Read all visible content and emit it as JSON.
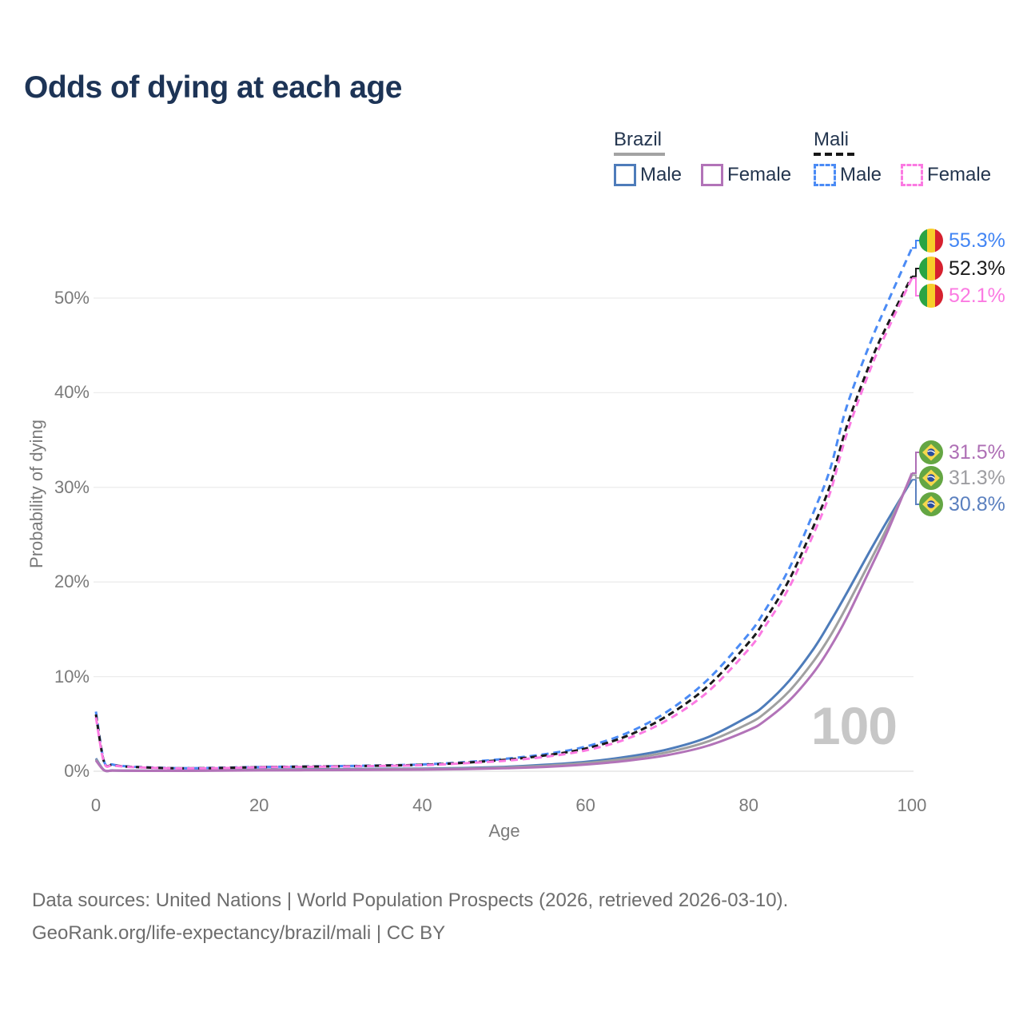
{
  "title": "Odds of dying at each age",
  "legend": {
    "groups": [
      {
        "label": "Brazil",
        "line_style": "solid",
        "header_line_color": "#a3a3a3",
        "items": [
          {
            "label": "Male",
            "color": "#4e7cba"
          },
          {
            "label": "Female",
            "color": "#b273b8"
          }
        ]
      },
      {
        "label": "Mali",
        "line_style": "dashed",
        "header_line_color": "#161616",
        "items": [
          {
            "label": "Male",
            "color": "#4b8bf5"
          },
          {
            "label": "Female",
            "color": "#fb7ae2"
          }
        ]
      }
    ]
  },
  "watermark": "100",
  "footer": {
    "line1": "Data sources: United Nations | World Population Prospects (2026, retrieved 2026-03-10).",
    "line2": "GeoRank.org/life-expectancy/brazil/mali | CC BY"
  },
  "chart_data": {
    "type": "line",
    "title": "Odds of dying at each age",
    "xlabel": "Age",
    "ylabel": "Probability of dying",
    "xlim": [
      0,
      100
    ],
    "ylim_pct": [
      0,
      57
    ],
    "grid": "horizontal",
    "legend_position": "top-right",
    "x_ticks": [
      0,
      20,
      40,
      60,
      80,
      100
    ],
    "y_tick_values": [
      0,
      10,
      20,
      30,
      40,
      50
    ],
    "y_tick_labels": [
      "0%",
      "10%",
      "20%",
      "30%",
      "40%",
      "50%"
    ],
    "ages": [
      0,
      1,
      2,
      3,
      5,
      10,
      15,
      20,
      25,
      30,
      35,
      40,
      45,
      50,
      55,
      60,
      65,
      70,
      75,
      80,
      82,
      85,
      88,
      90,
      92,
      95,
      97,
      100
    ],
    "series": [
      {
        "id": "brazil_male",
        "name": "Brazil Male",
        "color": "#4e7cba",
        "dash": null,
        "values": [
          1.35,
          0.12,
          0.09,
          0.07,
          0.06,
          0.05,
          0.11,
          0.17,
          0.2,
          0.22,
          0.25,
          0.28,
          0.34,
          0.46,
          0.68,
          1.0,
          1.52,
          2.3,
          3.6,
          5.8,
          7.0,
          9.6,
          13.0,
          15.8,
          18.8,
          23.5,
          26.5,
          30.8
        ]
      },
      {
        "id": "brazil_combined",
        "name": "Brazil Both sexes",
        "color": "#a0a0a0",
        "dash": null,
        "values": [
          1.25,
          0.11,
          0.08,
          0.06,
          0.05,
          0.045,
          0.09,
          0.13,
          0.16,
          0.18,
          0.2,
          0.23,
          0.28,
          0.39,
          0.57,
          0.86,
          1.32,
          2.0,
          3.15,
          5.05,
          6.15,
          8.5,
          11.7,
          14.3,
          17.4,
          22.4,
          25.8,
          31.3
        ]
      },
      {
        "id": "brazil_female",
        "name": "Brazil Female",
        "color": "#b273b8",
        "dash": null,
        "values": [
          1.15,
          0.1,
          0.07,
          0.055,
          0.045,
          0.04,
          0.06,
          0.09,
          0.11,
          0.13,
          0.15,
          0.17,
          0.22,
          0.31,
          0.46,
          0.71,
          1.1,
          1.7,
          2.7,
          4.35,
          5.35,
          7.5,
          10.5,
          13.1,
          16.2,
          21.6,
          25.3,
          31.5
        ]
      },
      {
        "id": "mali_male",
        "name": "Mali Male",
        "color": "#4b8bf5",
        "dash": "9 6",
        "values": [
          6.3,
          1.05,
          0.72,
          0.58,
          0.46,
          0.33,
          0.37,
          0.45,
          0.5,
          0.55,
          0.62,
          0.72,
          0.95,
          1.3,
          1.8,
          2.6,
          4.0,
          6.3,
          9.7,
          14.5,
          17.0,
          21.5,
          27.5,
          32.0,
          38.5,
          45.5,
          49.5,
          55.3
        ]
      },
      {
        "id": "mali_combined",
        "name": "Mali Both sexes",
        "color": "#1a1a1a",
        "dash": "8 5",
        "values": [
          6.0,
          0.98,
          0.68,
          0.55,
          0.44,
          0.31,
          0.35,
          0.43,
          0.48,
          0.52,
          0.59,
          0.68,
          0.89,
          1.2,
          1.66,
          2.4,
          3.7,
          5.85,
          9.0,
          13.6,
          16.0,
          20.3,
          26.0,
          30.3,
          36.4,
          43.4,
          47.2,
          52.3
        ]
      },
      {
        "id": "mali_female",
        "name": "Mali Female",
        "color": "#fb7ae2",
        "dash": "9 6",
        "values": [
          5.7,
          0.92,
          0.64,
          0.52,
          0.42,
          0.3,
          0.33,
          0.41,
          0.46,
          0.5,
          0.56,
          0.64,
          0.84,
          1.1,
          1.52,
          2.2,
          3.4,
          5.4,
          8.4,
          12.9,
          15.3,
          19.5,
          25.2,
          29.5,
          35.6,
          42.7,
          46.6,
          52.1
        ]
      }
    ],
    "end_labels": [
      {
        "series": "mali_male",
        "flag": "mali",
        "pct": 55.3,
        "value": "55.3%",
        "color": "#4285f4"
      },
      {
        "series": "mali_combined",
        "flag": "mali",
        "pct": 52.3,
        "value": "52.3%",
        "color": "#1c1c1c"
      },
      {
        "series": "mali_female",
        "flag": "mali",
        "pct": 52.1,
        "value": "52.1%",
        "color": "#fb7ae2"
      },
      {
        "series": "brazil_female",
        "flag": "brazil",
        "pct": 31.5,
        "value": "31.5%",
        "color": "#ae6fb5"
      },
      {
        "series": "brazil_combined",
        "flag": "brazil",
        "pct": 31.3,
        "value": "31.3%",
        "color": "#9d9da1"
      },
      {
        "series": "brazil_male",
        "flag": "brazil",
        "pct": 30.8,
        "value": "30.8%",
        "color": "#5b80bf"
      }
    ]
  }
}
